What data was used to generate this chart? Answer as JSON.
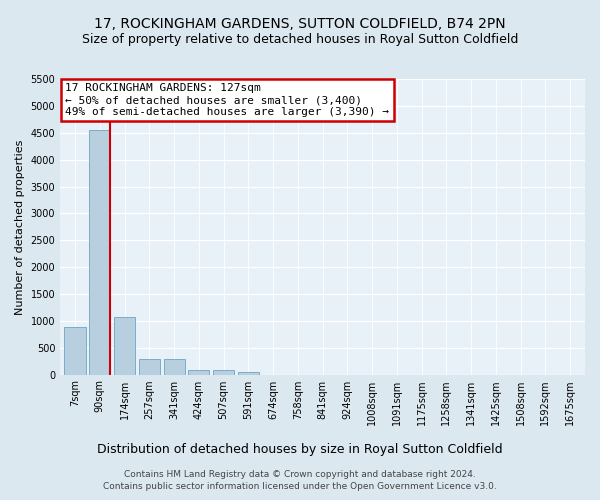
{
  "title": "17, ROCKINGHAM GARDENS, SUTTON COLDFIELD, B74 2PN",
  "subtitle": "Size of property relative to detached houses in Royal Sutton Coldfield",
  "xlabel": "Distribution of detached houses by size in Royal Sutton Coldfield",
  "ylabel": "Number of detached properties",
  "footer_line1": "Contains HM Land Registry data © Crown copyright and database right 2024.",
  "footer_line2": "Contains public sector information licensed under the Open Government Licence v3.0.",
  "bar_labels": [
    "7sqm",
    "90sqm",
    "174sqm",
    "257sqm",
    "341sqm",
    "424sqm",
    "507sqm",
    "591sqm",
    "674sqm",
    "758sqm",
    "841sqm",
    "924sqm",
    "1008sqm",
    "1091sqm",
    "1175sqm",
    "1258sqm",
    "1341sqm",
    "1425sqm",
    "1508sqm",
    "1592sqm",
    "1675sqm"
  ],
  "bar_values": [
    880,
    4560,
    1070,
    285,
    290,
    90,
    90,
    55,
    0,
    0,
    0,
    0,
    0,
    0,
    0,
    0,
    0,
    0,
    0,
    0,
    0
  ],
  "bar_color": "#b8cfe0",
  "bar_edge_color": "#7aadc8",
  "vline_x": 1.42,
  "vline_color": "#cc0000",
  "annotation_text": "17 ROCKINGHAM GARDENS: 127sqm\n← 50% of detached houses are smaller (3,400)\n49% of semi-detached houses are larger (3,390) →",
  "annotation_box_facecolor": "#ffffff",
  "annotation_box_edgecolor": "#cc0000",
  "ylim": [
    0,
    5500
  ],
  "yticks": [
    0,
    500,
    1000,
    1500,
    2000,
    2500,
    3000,
    3500,
    4000,
    4500,
    5000,
    5500
  ],
  "bg_color": "#dce8f0",
  "plot_bg_color": "#e8f0f8",
  "grid_color": "#ffffff",
  "title_fontsize": 10,
  "subtitle_fontsize": 9,
  "xlabel_fontsize": 9,
  "ylabel_fontsize": 8,
  "tick_fontsize": 7,
  "annotation_fontsize": 8,
  "footer_fontsize": 6.5
}
